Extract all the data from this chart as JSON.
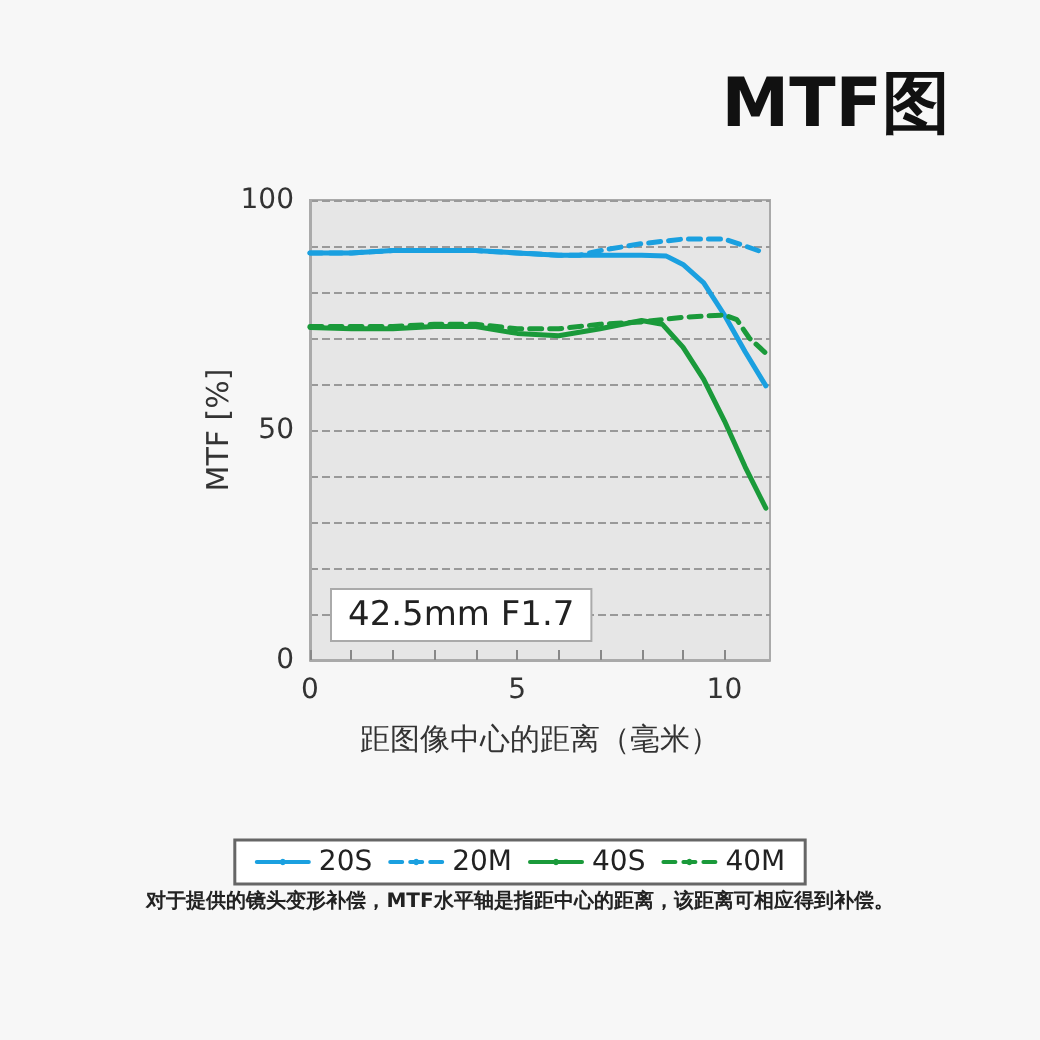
{
  "chart_data": {
    "type": "line",
    "title": "MTF图",
    "xlabel": "距图像中心的距离（毫米）",
    "ylabel": "MTF [%]",
    "annotations": [
      "42.5mm F1.7",
      "对于提供的镜头变形补偿，MTF水平轴是指距中心的距离，该距离可相应得到补偿。"
    ],
    "xlim": [
      0,
      11.1
    ],
    "xticks": [
      0,
      {
        "value": 1,
        "label": null
      },
      {
        "value": 2,
        "label": null
      },
      {
        "value": 3,
        "label": null
      },
      {
        "value": 4,
        "label": null
      },
      5,
      {
        "value": 6,
        "label": null
      },
      {
        "value": 7,
        "label": null
      },
      {
        "value": 8,
        "label": null
      },
      {
        "value": 9,
        "label": null
      },
      10
    ],
    "ylim": [
      0,
      100
    ],
    "yticks": [
      0,
      {
        "value": 10,
        "label": null
      },
      {
        "value": 20,
        "label": null
      },
      {
        "value": 30,
        "label": null
      },
      {
        "value": 40,
        "label": null
      },
      50,
      {
        "value": 60,
        "label": null
      },
      {
        "value": 70,
        "label": null
      },
      {
        "value": 80,
        "label": null
      },
      {
        "value": 90,
        "label": null
      },
      100
    ],
    "grid": "y",
    "legend": "bottom",
    "marker": "none",
    "series": [
      {
        "name": "20S",
        "color": "#1aa0e0",
        "line_style": "solid",
        "x": [
          0,
          1,
          2,
          3,
          4,
          5,
          6,
          7,
          8,
          8.6,
          9,
          9.5,
          10,
          10.5,
          11
        ],
        "values": [
          88.5,
          88.5,
          89,
          89,
          89,
          88.5,
          88,
          88,
          88,
          87.8,
          86,
          82,
          75,
          67,
          59.6
        ]
      },
      {
        "name": "20M",
        "color": "#1aa0e0",
        "line_style": "dashed",
        "x": [
          0,
          1,
          2,
          3,
          4,
          5,
          6,
          6.5,
          7,
          8,
          9,
          10,
          10.5,
          11
        ],
        "values": [
          88.5,
          88.5,
          89,
          89,
          89,
          88.5,
          88,
          88,
          89,
          90.5,
          91.5,
          91.5,
          90,
          88.4
        ]
      },
      {
        "name": "40S",
        "color": "#1a9a3a",
        "line_style": "solid",
        "x": [
          0,
          1,
          2,
          3,
          4,
          5,
          6,
          7,
          8,
          8.5,
          9,
          9.5,
          10,
          10.5,
          11
        ],
        "values": [
          72.3,
          72,
          72,
          72.5,
          72.5,
          71,
          70.5,
          72,
          73.8,
          73,
          68,
          61,
          52,
          42,
          33
        ]
      },
      {
        "name": "40M",
        "color": "#1a9a3a",
        "line_style": "dashed",
        "x": [
          0,
          1,
          2,
          3,
          4,
          5,
          6,
          6.5,
          7,
          8,
          9,
          10,
          10.3,
          10.6,
          11
        ],
        "values": [
          72.5,
          72.5,
          72.5,
          73,
          73,
          72,
          72,
          72.5,
          73,
          73.5,
          74.5,
          75,
          74,
          70,
          66.7
        ]
      }
    ]
  }
}
